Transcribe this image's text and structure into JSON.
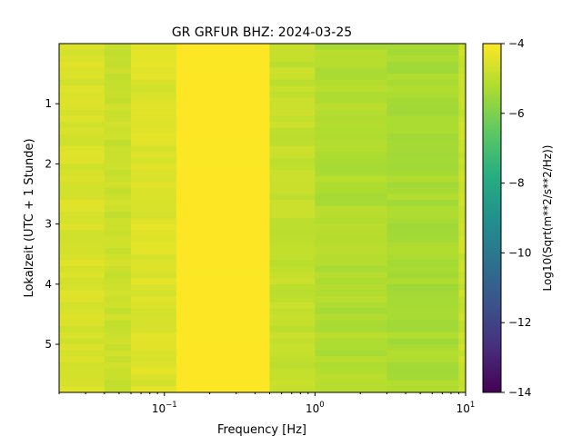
{
  "chart_data": {
    "type": "heatmap",
    "title": "GR GRFUR  BHZ: 2024-03-25",
    "xlabel": "Frequency [Hz]",
    "ylabel": "Lokalzeit (UTC + 1 Stunde)",
    "x_scale": "log",
    "x_range": [
      0.02,
      10
    ],
    "x_ticks": [
      {
        "value": 0.1,
        "base": "10",
        "exp": "−1"
      },
      {
        "value": 1,
        "base": "10",
        "exp": "0"
      },
      {
        "value": 10,
        "base": "10",
        "exp": "1"
      }
    ],
    "y_range": [
      0,
      5.8
    ],
    "y_inverted": true,
    "y_ticks": [
      "1",
      "2",
      "3",
      "4",
      "5"
    ],
    "colorbar": {
      "label": "Log10(Sqrt(m**2/s**2/Hz))",
      "range": [
        -14,
        -4
      ],
      "ticks": [
        "−4",
        "−6",
        "−8",
        "−10",
        "−12",
        "−14"
      ],
      "colormap": "viridis"
    },
    "frequency_band_levels": [
      {
        "f_min": 0.02,
        "f_max": 0.04,
        "level": -4.6
      },
      {
        "f_min": 0.04,
        "f_max": 0.06,
        "level": -4.8
      },
      {
        "f_min": 0.06,
        "f_max": 0.12,
        "level": -4.5
      },
      {
        "f_min": 0.12,
        "f_max": 0.5,
        "level": -4.0
      },
      {
        "f_min": 0.5,
        "f_max": 1.0,
        "level": -4.9
      },
      {
        "f_min": 1.0,
        "f_max": 3.0,
        "level": -5.2
      },
      {
        "f_min": 3.0,
        "f_max": 9.0,
        "level": -5.3
      },
      {
        "f_min": 9.0,
        "f_max": 10.0,
        "level": -4.8
      }
    ]
  }
}
